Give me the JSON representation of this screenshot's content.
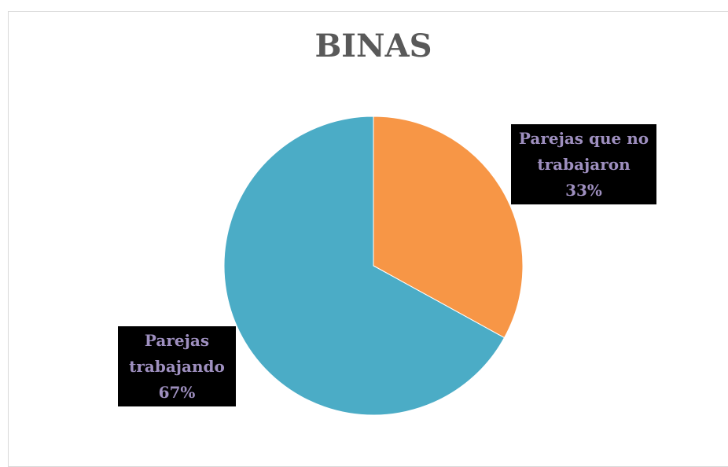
{
  "chart_data": {
    "type": "pie",
    "title": "BINAS",
    "categories": [
      "Parejas que no trabajaron",
      "Parejas trabajando"
    ],
    "values": [
      33,
      67
    ],
    "value_labels": [
      "33%",
      "67%"
    ],
    "colors": [
      "#f79646",
      "#4bacc6"
    ]
  }
}
